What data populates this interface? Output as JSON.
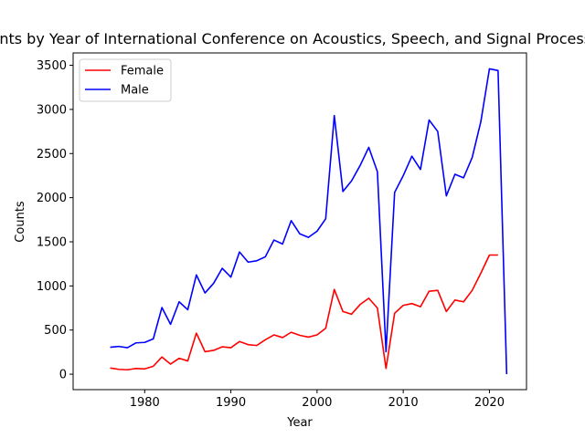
{
  "chart_data": {
    "type": "line",
    "title": "Counts by Year of International Conference on Acoustics, Speech, and Signal Processing",
    "xlabel": "Year",
    "ylabel": "Counts",
    "xlim": [
      1971.7,
      2024.3
    ],
    "ylim": [
      -175,
      3640
    ],
    "xticks": [
      1980,
      1990,
      2000,
      2010,
      2020
    ],
    "yticks": [
      0,
      500,
      1000,
      1500,
      2000,
      2500,
      3000,
      3500
    ],
    "grid": false,
    "legend_position": "top-left",
    "series": [
      {
        "name": "Female",
        "color": "#ff0000",
        "points": [
          [
            1976,
            70
          ],
          [
            1977,
            55
          ],
          [
            1978,
            50
          ],
          [
            1979,
            65
          ],
          [
            1980,
            60
          ],
          [
            1981,
            90
          ],
          [
            1982,
            195
          ],
          [
            1983,
            115
          ],
          [
            1984,
            180
          ],
          [
            1985,
            150
          ],
          [
            1986,
            465
          ],
          [
            1987,
            255
          ],
          [
            1988,
            270
          ],
          [
            1989,
            310
          ],
          [
            1990,
            300
          ],
          [
            1991,
            370
          ],
          [
            1992,
            335
          ],
          [
            1993,
            325
          ],
          [
            1994,
            390
          ],
          [
            1995,
            445
          ],
          [
            1996,
            415
          ],
          [
            1997,
            475
          ],
          [
            1998,
            440
          ],
          [
            1999,
            420
          ],
          [
            2000,
            445
          ],
          [
            2001,
            520
          ],
          [
            2002,
            960
          ],
          [
            2003,
            710
          ],
          [
            2004,
            680
          ],
          [
            2005,
            790
          ],
          [
            2006,
            860
          ],
          [
            2007,
            750
          ],
          [
            2008,
            65
          ],
          [
            2009,
            690
          ],
          [
            2010,
            780
          ],
          [
            2011,
            800
          ],
          [
            2012,
            765
          ],
          [
            2013,
            940
          ],
          [
            2014,
            950
          ],
          [
            2015,
            710
          ],
          [
            2016,
            840
          ],
          [
            2017,
            820
          ],
          [
            2018,
            950
          ],
          [
            2019,
            1145
          ],
          [
            2020,
            1350
          ],
          [
            2021,
            1350
          ]
        ]
      },
      {
        "name": "Male",
        "color": "#0000ff",
        "points": [
          [
            1976,
            305
          ],
          [
            1977,
            315
          ],
          [
            1978,
            300
          ],
          [
            1979,
            355
          ],
          [
            1980,
            360
          ],
          [
            1981,
            400
          ],
          [
            1982,
            755
          ],
          [
            1983,
            565
          ],
          [
            1984,
            820
          ],
          [
            1985,
            730
          ],
          [
            1986,
            1125
          ],
          [
            1987,
            920
          ],
          [
            1988,
            1030
          ],
          [
            1989,
            1200
          ],
          [
            1990,
            1100
          ],
          [
            1991,
            1385
          ],
          [
            1992,
            1270
          ],
          [
            1993,
            1285
          ],
          [
            1994,
            1330
          ],
          [
            1995,
            1520
          ],
          [
            1996,
            1475
          ],
          [
            1997,
            1740
          ],
          [
            1998,
            1590
          ],
          [
            1999,
            1550
          ],
          [
            2000,
            1620
          ],
          [
            2001,
            1760
          ],
          [
            2002,
            2930
          ],
          [
            2003,
            2070
          ],
          [
            2004,
            2190
          ],
          [
            2005,
            2365
          ],
          [
            2006,
            2570
          ],
          [
            2007,
            2295
          ],
          [
            2008,
            255
          ],
          [
            2009,
            2060
          ],
          [
            2010,
            2250
          ],
          [
            2011,
            2470
          ],
          [
            2012,
            2320
          ],
          [
            2013,
            2880
          ],
          [
            2014,
            2750
          ],
          [
            2015,
            2020
          ],
          [
            2016,
            2265
          ],
          [
            2017,
            2225
          ],
          [
            2018,
            2455
          ],
          [
            2019,
            2860
          ],
          [
            2020,
            3460
          ],
          [
            2021,
            3440
          ],
          [
            2022,
            0
          ]
        ]
      }
    ]
  }
}
